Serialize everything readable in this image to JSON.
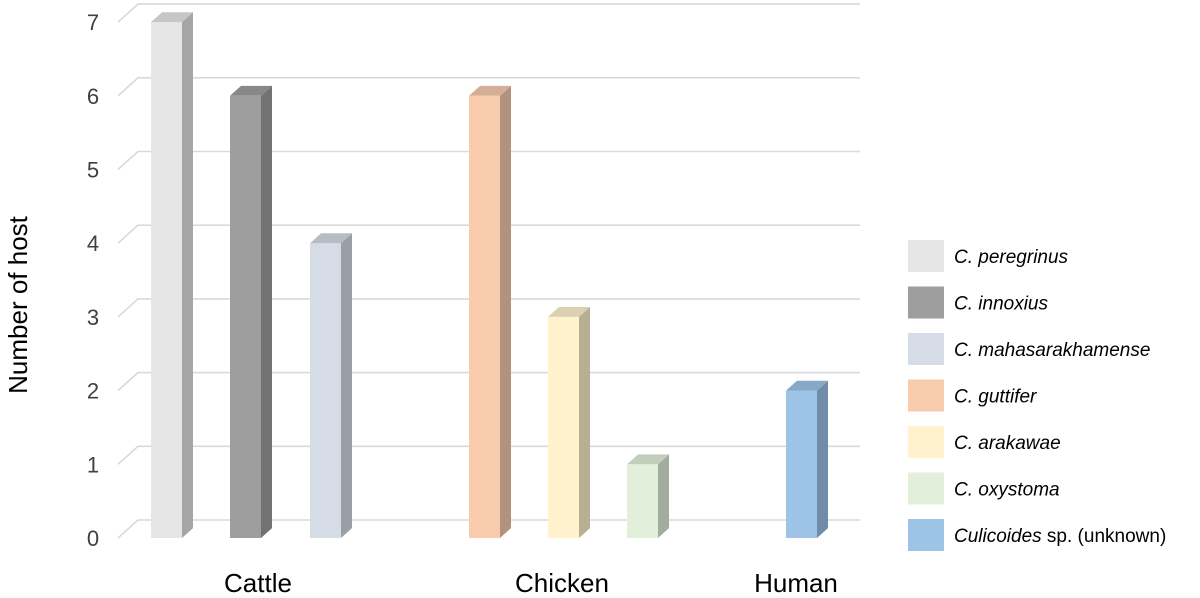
{
  "chart_data": {
    "type": "bar",
    "ylabel": "Number of host",
    "ylim": [
      0,
      7
    ],
    "yticks": [
      0,
      1,
      2,
      3,
      4,
      5,
      6,
      7
    ],
    "grid": true,
    "legend_position": "right",
    "groups": [
      {
        "category": "Cattle",
        "bars": [
          {
            "series": 0,
            "value": 7
          },
          {
            "series": 1,
            "value": 6
          },
          {
            "series": 2,
            "value": 4
          }
        ]
      },
      {
        "category": "Chicken",
        "bars": [
          {
            "series": 3,
            "value": 6
          },
          {
            "series": 4,
            "value": 3
          },
          {
            "series": 5,
            "value": 1
          }
        ]
      },
      {
        "category": "Human",
        "bars": [
          {
            "series": 6,
            "value": 2
          }
        ]
      }
    ],
    "series": [
      {
        "italic": "C. peregrinus",
        "suffix": "",
        "color": "#e6e6e6"
      },
      {
        "italic": "C. innoxius",
        "suffix": "",
        "color": "#9e9e9e"
      },
      {
        "italic": "C. mahasarakhamense",
        "suffix": "",
        "color": "#d6dce5"
      },
      {
        "italic": "C. guttifer",
        "suffix": "",
        "color": "#f8cbad"
      },
      {
        "italic": "C. arakawae",
        "suffix": "",
        "color": "#fff2cc"
      },
      {
        "italic": "C. oxystoma",
        "suffix": "",
        "color": "#e2efda"
      },
      {
        "italic": "Culicoides",
        "suffix": " sp. (unknown)",
        "color": "#9dc3e6"
      }
    ]
  }
}
